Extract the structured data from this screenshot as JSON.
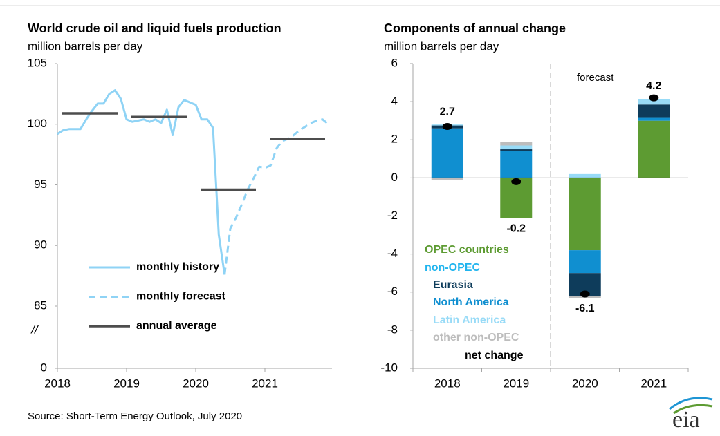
{
  "chart_data": [
    {
      "type": "line",
      "title": "World crude oil and liquid fuels production",
      "subtitle": "million barrels per day",
      "x": [
        2018,
        2018.083,
        2018.167,
        2018.25,
        2018.333,
        2018.417,
        2018.5,
        2018.583,
        2018.667,
        2018.75,
        2018.833,
        2018.917,
        2019,
        2019.083,
        2019.167,
        2019.25,
        2019.333,
        2019.417,
        2019.5,
        2019.583,
        2019.667,
        2019.75,
        2019.833,
        2019.917,
        2020,
        2020.083,
        2020.167,
        2020.25,
        2020.333,
        2020.417,
        2020.5,
        2020.583,
        2020.667,
        2020.75,
        2020.833,
        2020.917,
        2021,
        2021.083,
        2021.167,
        2021.25,
        2021.333,
        2021.417,
        2021.5,
        2021.583,
        2021.667,
        2021.75,
        2021.833,
        2021.917
      ],
      "series": [
        {
          "name": "monthly history",
          "color": "#8fd3f5",
          "dashed": false,
          "values": [
            99.2,
            99.5,
            99.6,
            99.6,
            99.6,
            100.4,
            101.1,
            101.7,
            101.7,
            102.5,
            102.8,
            102.1,
            100.4,
            100.2,
            100.3,
            100.4,
            100.2,
            100.4,
            100.1,
            101.2,
            99.1,
            101.4,
            102.0,
            101.8,
            101.6,
            100.4,
            100.4,
            99.7,
            90.9,
            87.6,
            null,
            null,
            null,
            null,
            null,
            null,
            null,
            null,
            null,
            null,
            null,
            null,
            null,
            null,
            null,
            null,
            null,
            null
          ]
        },
        {
          "name": "monthly forecast",
          "color": "#8fd3f5",
          "dashed": true,
          "values": [
            null,
            null,
            null,
            null,
            null,
            null,
            null,
            null,
            null,
            null,
            null,
            null,
            null,
            null,
            null,
            null,
            null,
            null,
            null,
            null,
            null,
            null,
            null,
            null,
            null,
            null,
            null,
            null,
            null,
            87.6,
            91.4,
            92.3,
            93.4,
            94.6,
            95.5,
            96.5,
            96.4,
            96.6,
            98.0,
            98.6,
            98.8,
            99.1,
            99.5,
            99.8,
            100.1,
            100.3,
            100.4,
            100.0
          ]
        },
        {
          "name": "annual average",
          "color": "#4d4d4d",
          "dashed": false,
          "segments": true,
          "x": [
            2018,
            2019,
            2020,
            2021
          ],
          "values": [
            100.9,
            100.6,
            94.6,
            98.8
          ]
        }
      ],
      "xlim": [
        2018,
        2022
      ],
      "xticks": [
        2018,
        2019,
        2020,
        2021
      ],
      "ylim": [
        0,
        105
      ],
      "yticks": [
        0,
        85,
        90,
        95,
        100,
        105
      ],
      "axis_break": [
        0,
        85
      ],
      "axis_break_label": "//",
      "grid": false,
      "legend": "lower left"
    },
    {
      "type": "stacked_bar",
      "title": "Components of annual change",
      "subtitle": "million barrels per day",
      "categories": [
        "2018",
        "2019",
        "2020",
        "2021"
      ],
      "series": [
        {
          "name": "OPEC countries",
          "color": "#5d9b32",
          "values": [
            0.0,
            -2.1,
            -3.8,
            3.0
          ]
        },
        {
          "name": "Eurasia",
          "color": "#0e3c5b",
          "values": [
            0.15,
            0.1,
            -1.2,
            0.7
          ]
        },
        {
          "name": "North America",
          "color": "#108fd0",
          "values": [
            2.6,
            1.4,
            -1.2,
            0.15
          ]
        },
        {
          "name": "Latin America",
          "color": "#98dbf7",
          "values": [
            0.05,
            0.2,
            0.2,
            0.3
          ]
        },
        {
          "name": "other non-OPEC",
          "color": "#bdbdbd",
          "values": [
            -0.1,
            0.2,
            -0.1,
            0.0
          ]
        }
      ],
      "legend_group_label": "non-OPEC",
      "legend_group_color": "#1fb4ee",
      "net_change": {
        "name": "net change",
        "color": "#000000",
        "values": [
          2.7,
          -0.2,
          -6.1,
          4.2
        ]
      },
      "annotation": "forecast",
      "ylim": [
        -10,
        6
      ],
      "yticks": [
        -10,
        -8,
        -6,
        -4,
        -2,
        0,
        2,
        4,
        6
      ],
      "grid": false,
      "legend": "lower left"
    }
  ],
  "source": "Source: Short-Term Energy Outlook, July 2020",
  "logo": "eia"
}
